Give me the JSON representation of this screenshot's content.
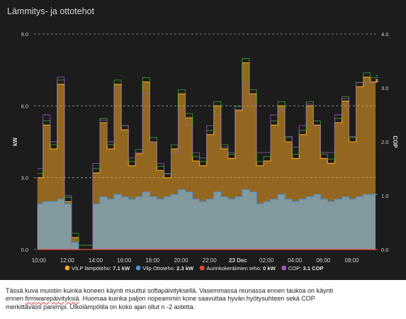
{
  "panel": {
    "title": "Lämmitys- ja ottotehot"
  },
  "chart_data": {
    "type": "area",
    "x_ticks": [
      "10:00",
      "12:00",
      "14:00",
      "16:00",
      "18:00",
      "20:00",
      "22:00",
      "23 Dec",
      "02:00",
      "04:00",
      "06:00",
      "08:00"
    ],
    "x_range": [
      "22 Dec 09:40",
      "23 Dec 09:40"
    ],
    "ylabel_left": "kW",
    "ylim_left": [
      0,
      9
    ],
    "yticks_left": [
      "0.0",
      "3.0",
      "6.0",
      "9.0"
    ],
    "ylabel_right": "COP",
    "ylim_right": [
      0,
      4
    ],
    "yticks_right": [
      "0.0",
      "1.0",
      "2.0",
      "3.0",
      "4.0"
    ],
    "grid": "dashed horizontal",
    "legend_position": "bottom",
    "time_hours": [
      -0.1,
      0.3,
      0.8,
      1.3,
      1.8,
      2.3,
      2.8,
      3.3,
      3.8,
      4.3,
      4.8,
      5.3,
      5.8,
      6.3,
      6.8,
      7.3,
      7.8,
      8.3,
      8.8,
      9.3,
      9.8,
      10.3,
      10.8,
      11.3,
      11.8,
      12.3,
      12.8,
      13.3,
      13.8,
      14.3,
      14.8,
      15.3,
      15.8,
      16.3,
      16.8,
      17.3,
      17.8,
      18.3,
      18.8,
      19.3,
      19.8,
      20.3,
      20.8,
      21.3,
      21.8,
      22.3,
      22.8,
      23.3,
      23.8
    ],
    "series": [
      {
        "name": "VILP lämpöteho",
        "unit": "kW",
        "color": "#f5a623",
        "values": [
          3.0,
          5.2,
          4.2,
          6.9,
          2.0,
          0.5,
          0.0,
          0.0,
          3.2,
          5.3,
          4.2,
          6.9,
          5.0,
          3.5,
          4.0,
          7.0,
          4.5,
          3.3,
          3.0,
          4.2,
          6.5,
          5.5,
          3.7,
          3.5,
          4.8,
          6.0,
          4.2,
          3.8,
          5.8,
          7.8,
          6.5,
          3.5,
          3.7,
          5.2,
          6.0,
          4.5,
          3.8,
          4.8,
          6.0,
          5.2,
          3.8,
          3.6,
          5.3,
          6.2,
          4.5,
          6.8,
          7.2,
          7.0,
          7.1
        ]
      },
      {
        "name": "Vilp Ottoteho",
        "unit": "kW",
        "color": "#4a90d9",
        "values": [
          1.9,
          2.0,
          2.0,
          2.1,
          1.9,
          0.3,
          0.0,
          0.0,
          1.9,
          2.2,
          2.1,
          2.3,
          2.2,
          2.1,
          2.2,
          2.4,
          2.2,
          2.1,
          2.2,
          2.3,
          2.5,
          2.4,
          2.1,
          2.0,
          2.1,
          2.4,
          2.2,
          2.1,
          2.2,
          2.5,
          2.4,
          1.9,
          2.0,
          2.1,
          2.3,
          2.1,
          2.0,
          2.1,
          2.2,
          2.3,
          2.1,
          2.0,
          2.1,
          2.2,
          2.1,
          2.2,
          2.3,
          2.3,
          2.3
        ]
      },
      {
        "name": "Aurinkokeräimien teho",
        "unit": "kW",
        "color": "#e8473f",
        "values": [
          0,
          0,
          0,
          0,
          0,
          0,
          0,
          0,
          0,
          0,
          0,
          0,
          0,
          0,
          0,
          0,
          0,
          0,
          0,
          0,
          0,
          0,
          0,
          0,
          0,
          0,
          0,
          0,
          0,
          0,
          0,
          0,
          0,
          0,
          0,
          0,
          0,
          0,
          0,
          0,
          0,
          0,
          0,
          0,
          0,
          0,
          0,
          0,
          0
        ]
      },
      {
        "name": "COP",
        "unit": "COP",
        "color": "#9b59b6",
        "values": [
          1.5,
          2.5,
          2.0,
          3.2,
          1.0,
          0.0,
          0.0,
          0.0,
          1.6,
          2.4,
          2.0,
          3.0,
          2.3,
          1.7,
          1.8,
          2.9,
          2.0,
          1.6,
          1.4,
          1.8,
          2.6,
          2.3,
          1.8,
          1.7,
          2.3,
          2.5,
          1.9,
          1.8,
          2.6,
          3.1,
          2.7,
          1.8,
          1.8,
          2.5,
          2.6,
          2.1,
          1.9,
          2.3,
          2.7,
          2.3,
          1.8,
          1.8,
          2.5,
          2.8,
          2.1,
          3.1,
          3.1,
          3.1,
          3.1
        ]
      }
    ],
    "green_line_color": "#3aa335",
    "legend": [
      {
        "label": "VILP lämpöteho:",
        "value": "7.1 kW",
        "color": "#f5a623"
      },
      {
        "label": "Vilp Ottoteho:",
        "value": "2.3 kW",
        "color": "#4a90d9"
      },
      {
        "label": "Aurinkokeräimien teho:",
        "value": "0 kW",
        "color": "#e8473f"
      },
      {
        "label": "COP:",
        "value": "3.1 COP",
        "color": "#9b59b6"
      }
    ]
  },
  "caption": {
    "line1": "Tässä kuva muistiin kuinka koneen käynti muuttui softapäivityksellä. Vasemmassa reunassa ennen taukoa on käynti",
    "line2_prefix": "ennen ",
    "line2_word": "firmwarepäivityksiä",
    "line2_suffix": ". Huomaa kuinka paljon nopeammin kone saavuttaa hyvän hyötysuhteen sekä COP",
    "line3": "merkittävästi parempi. Ulkolämpötila on koko ajan ollut n -2 astetta."
  }
}
